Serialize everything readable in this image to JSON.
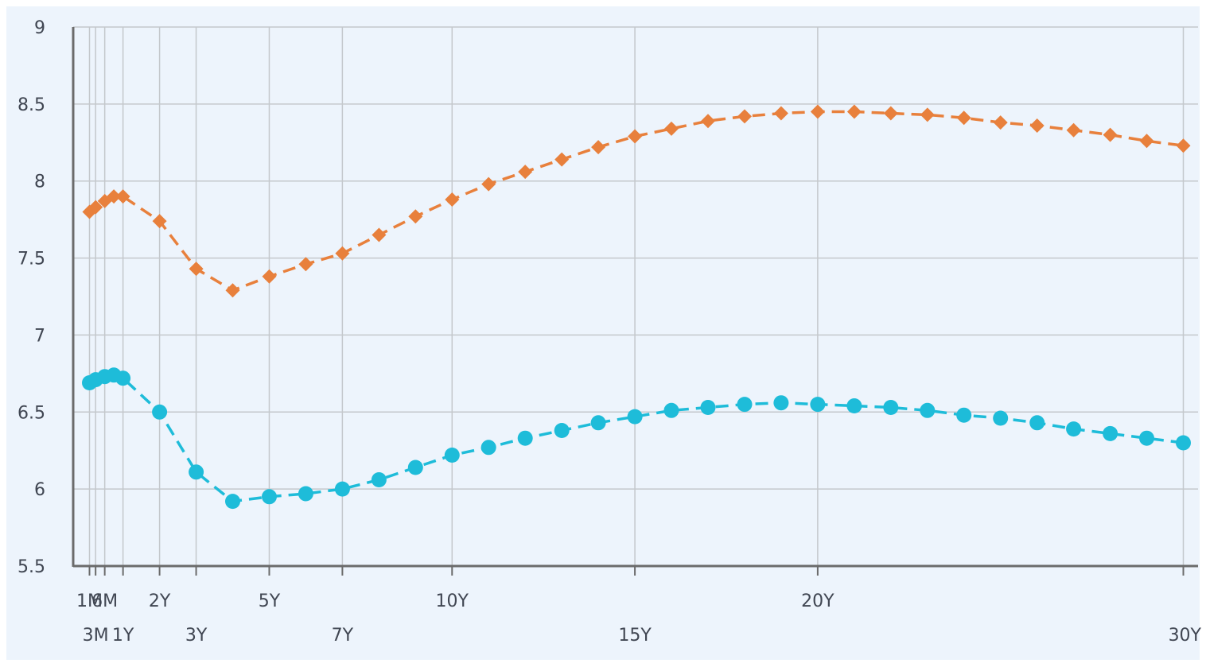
{
  "chart_data": {
    "type": "line",
    "title": "",
    "xlabel": "",
    "ylabel": "",
    "ylim": [
      5.5,
      9
    ],
    "yticks": [
      "5.5",
      "6",
      "6.5",
      "7",
      "7.5",
      "8",
      "8.5",
      "9"
    ],
    "grid": true,
    "legend": "none",
    "background_color": "#edf4fc",
    "grid_color": "#c4c8cc",
    "axis_color": "#6b6b6b",
    "x_tick_labels": [
      {
        "label": "1M",
        "x": 0.0833,
        "row": 1
      },
      {
        "label": "3M",
        "x": 0.25,
        "row": 2
      },
      {
        "label": "6M",
        "x": 0.5,
        "row": 1
      },
      {
        "label": "1Y",
        "x": 1,
        "row": 2
      },
      {
        "label": "2Y",
        "x": 2,
        "row": 1
      },
      {
        "label": "3Y",
        "x": 3,
        "row": 2
      },
      {
        "label": "5Y",
        "x": 5,
        "row": 1
      },
      {
        "label": "7Y",
        "x": 7,
        "row": 2
      },
      {
        "label": "10Y",
        "x": 10,
        "row": 1
      },
      {
        "label": "15Y",
        "x": 15,
        "row": 2
      },
      {
        "label": "20Y",
        "x": 20,
        "row": 1
      },
      {
        "label": "30Y",
        "x": 30,
        "row": 2
      }
    ],
    "series": [
      {
        "color": "#e8803c",
        "marker": "diamond",
        "line_style": "dashed",
        "points": [
          [
            0.0833,
            7.8
          ],
          [
            0.25,
            7.83
          ],
          [
            0.5,
            7.87
          ],
          [
            0.75,
            7.9
          ],
          [
            1,
            7.9
          ],
          [
            2,
            7.74
          ],
          [
            3,
            7.43
          ],
          [
            4,
            7.29
          ],
          [
            5,
            7.38
          ],
          [
            6,
            7.46
          ],
          [
            7,
            7.53
          ],
          [
            8,
            7.65
          ],
          [
            9,
            7.77
          ],
          [
            10,
            7.88
          ],
          [
            11,
            7.98
          ],
          [
            12,
            8.06
          ],
          [
            13,
            8.14
          ],
          [
            14,
            8.22
          ],
          [
            15,
            8.29
          ],
          [
            16,
            8.34
          ],
          [
            17,
            8.39
          ],
          [
            18,
            8.42
          ],
          [
            19,
            8.44
          ],
          [
            20,
            8.45
          ],
          [
            21,
            8.45
          ],
          [
            22,
            8.44
          ],
          [
            23,
            8.43
          ],
          [
            24,
            8.41
          ],
          [
            25,
            8.38
          ],
          [
            26,
            8.36
          ],
          [
            27,
            8.33
          ],
          [
            28,
            8.3
          ],
          [
            29,
            8.26
          ],
          [
            30,
            8.23
          ]
        ]
      },
      {
        "color": "#1ebcd9",
        "marker": "circle",
        "line_style": "dashed",
        "points": [
          [
            0.0833,
            6.69
          ],
          [
            0.25,
            6.71
          ],
          [
            0.5,
            6.73
          ],
          [
            0.75,
            6.74
          ],
          [
            1,
            6.72
          ],
          [
            2,
            6.5
          ],
          [
            3,
            6.11
          ],
          [
            4,
            5.92
          ],
          [
            5,
            5.95
          ],
          [
            6,
            5.97
          ],
          [
            7,
            6.0
          ],
          [
            8,
            6.06
          ],
          [
            9,
            6.14
          ],
          [
            10,
            6.22
          ],
          [
            11,
            6.27
          ],
          [
            12,
            6.33
          ],
          [
            13,
            6.38
          ],
          [
            14,
            6.43
          ],
          [
            15,
            6.47
          ],
          [
            16,
            6.51
          ],
          [
            17,
            6.53
          ],
          [
            18,
            6.55
          ],
          [
            19,
            6.56
          ],
          [
            20,
            6.55
          ],
          [
            21,
            6.54
          ],
          [
            22,
            6.53
          ],
          [
            23,
            6.51
          ],
          [
            24,
            6.48
          ],
          [
            25,
            6.46
          ],
          [
            26,
            6.43
          ],
          [
            27,
            6.39
          ],
          [
            28,
            6.36
          ],
          [
            29,
            6.33
          ],
          [
            30,
            6.3
          ]
        ]
      }
    ]
  }
}
